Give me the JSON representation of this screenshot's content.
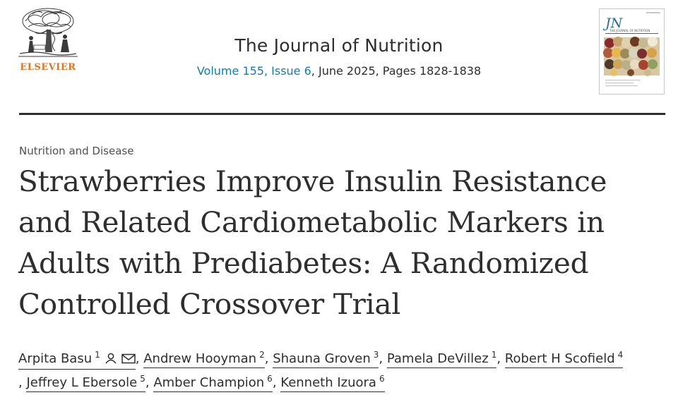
{
  "publisher": {
    "name": "ELSEVIER",
    "logo_icon": "elsevier-tree-icon",
    "brand_color": "#e9711c"
  },
  "journal": {
    "title": "The Journal of Nutrition",
    "issue_link": "Volume 155, Issue 6",
    "issue_rest": ", June 2025, Pages 1828-1838",
    "cover_initials": "JN",
    "cover_subtitle": "THE JOURNAL OF NUTRITION",
    "link_color": "#0c7dbb"
  },
  "article": {
    "type": "Nutrition and Disease",
    "title": "Strawberries Improve Insulin Resistance and Related Cardiometabolic Markers in Adults with Prediabetes: A Randomized Controlled Crossover Trial"
  },
  "authors": [
    {
      "name": "Arpita Basu",
      "aff": "1",
      "icons": [
        "person-icon",
        "envelope-icon"
      ]
    },
    {
      "name": "Andrew Hooyman",
      "aff": "2"
    },
    {
      "name": "Shauna Groven",
      "aff": "3"
    },
    {
      "name": "Pamela DeVillez",
      "aff": "1"
    },
    {
      "name": "Robert H Scofield",
      "aff": "4"
    },
    {
      "name": "Jeffrey L Ebersole",
      "aff": "5"
    },
    {
      "name": "Amber Champion",
      "aff": "6"
    },
    {
      "name": "Kenneth Izuora",
      "aff": "6"
    }
  ],
  "separator": ","
}
